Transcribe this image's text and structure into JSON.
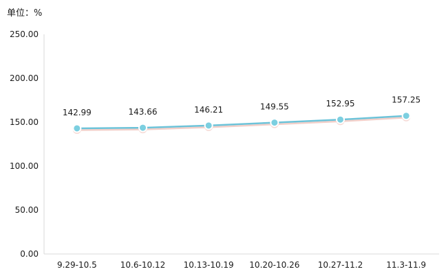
{
  "chart_data": {
    "type": "line",
    "unit_label": "单位：%",
    "categories": [
      "9.29-10.5",
      "10.6-10.12",
      "10.13-10.19",
      "10.20-10.26",
      "10.27-11.2",
      "11.3-11.9"
    ],
    "series": [
      {
        "values": [
          142.99,
          143.66,
          146.21,
          149.55,
          152.95,
          157.25
        ]
      }
    ],
    "data_labels": [
      "142.99",
      "143.66",
      "146.21",
      "149.55",
      "152.95",
      "157.25"
    ],
    "y_ticks": [
      "0.00",
      "50.00",
      "100.00",
      "150.00",
      "200.00",
      "250.00"
    ],
    "ylim": [
      0,
      250
    ],
    "grid": false,
    "colors": {
      "line": "#6cc3d9",
      "marker_fill": "#7ccfe0",
      "shadow": "#e8a79c",
      "axis": "#d9d9d9"
    }
  }
}
